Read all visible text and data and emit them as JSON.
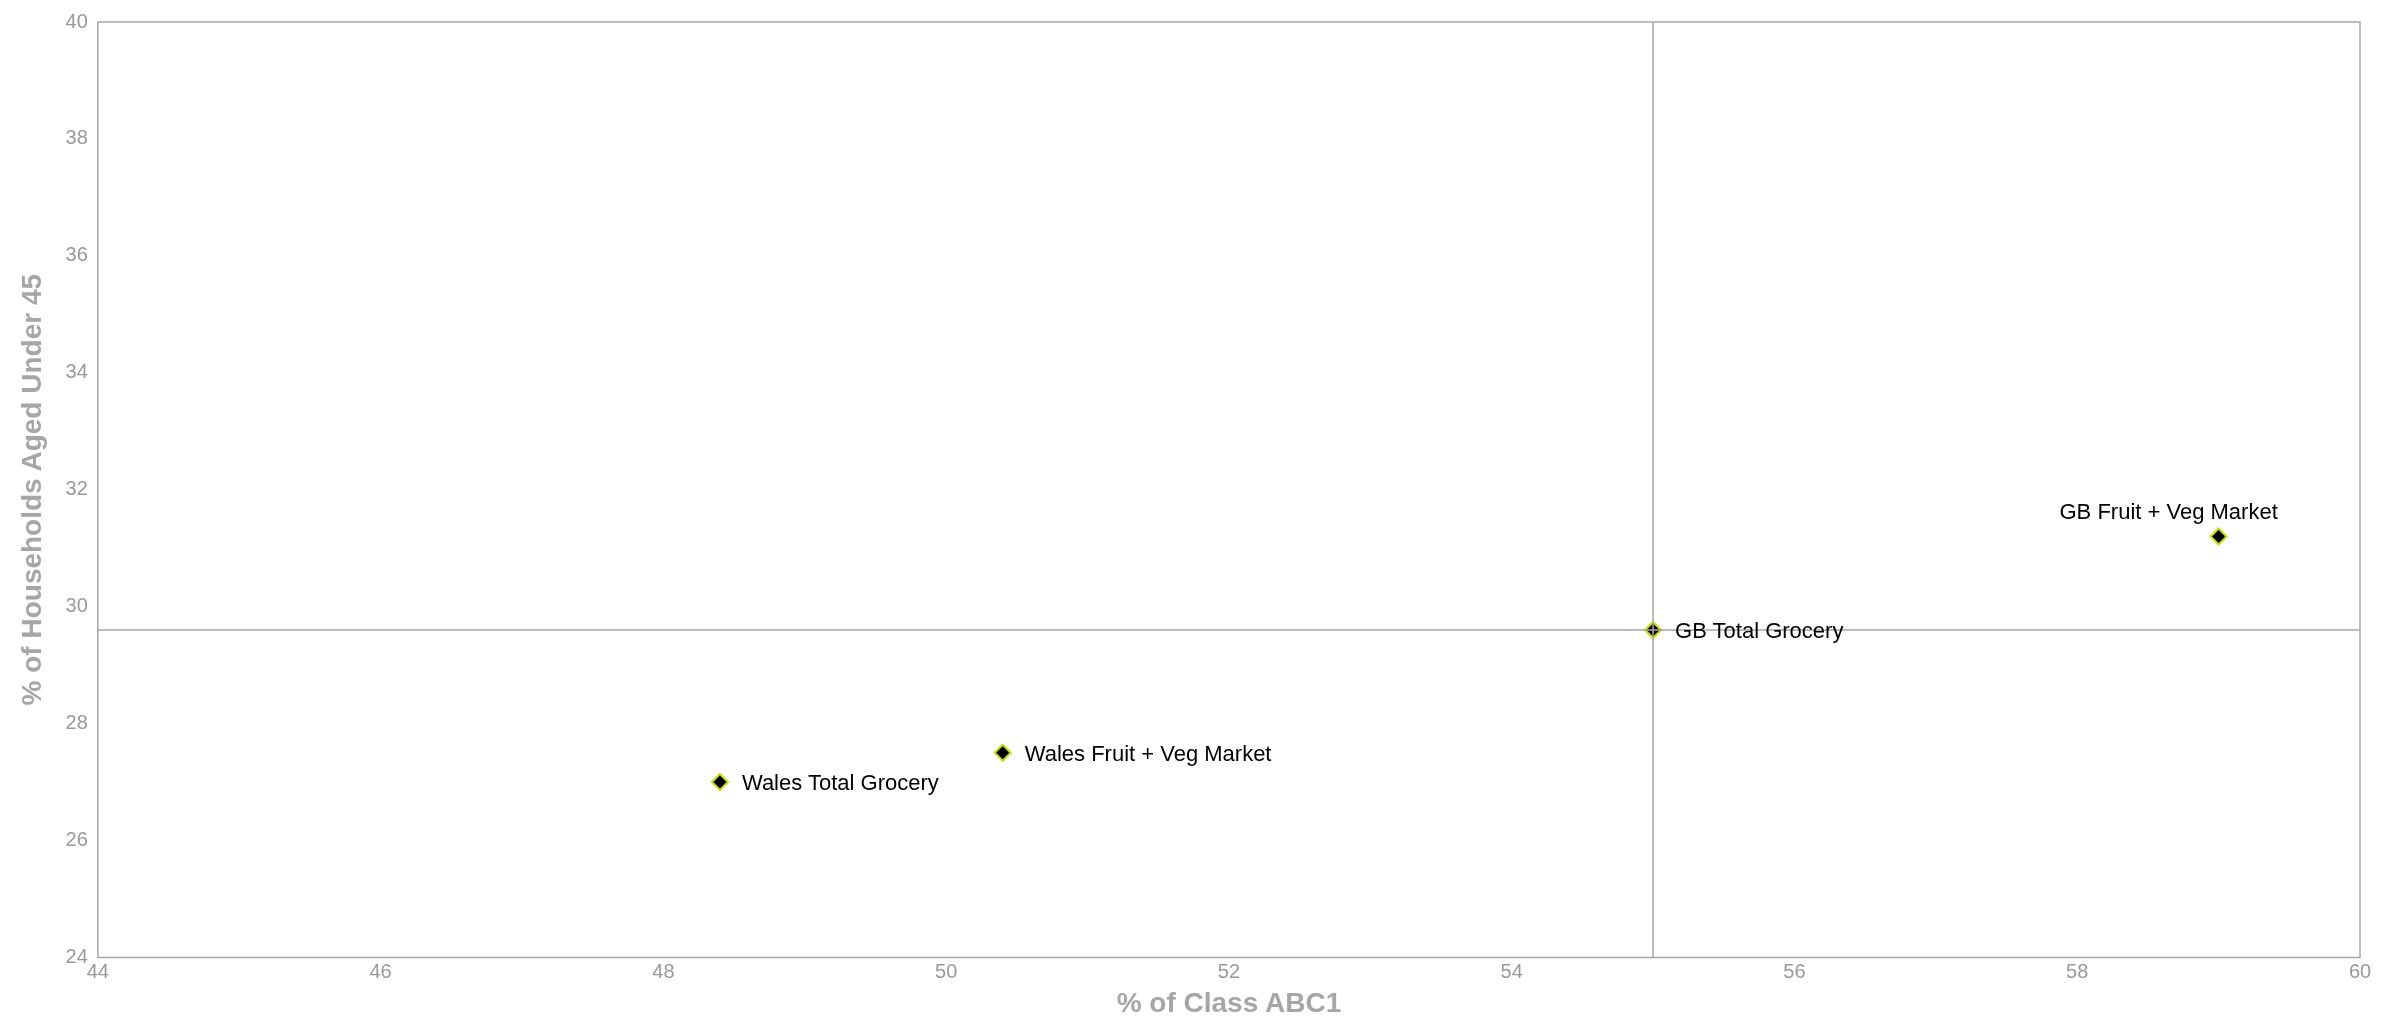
{
  "chart_data": {
    "type": "scatter",
    "xlabel": "% of Class ABC1",
    "ylabel": "% of Households Aged Under 45",
    "series": [
      {
        "color": "#000000",
        "x": [
          48.4,
          50.4,
          55.0,
          59.0
        ],
        "values": [
          27.0,
          27.5,
          29.6,
          31.2
        ]
      }
    ],
    "xlim": [
      44,
      60
    ],
    "xticks": [
      44,
      46,
      48,
      50,
      52,
      54,
      56,
      58,
      60
    ],
    "ylim": [
      24,
      40
    ],
    "yticks": [
      24,
      26,
      28,
      30,
      32,
      34,
      36,
      38,
      40
    ],
    "grid": false,
    "legend": false,
    "marker": "diamond",
    "ref_lines": [
      {
        "axis": "x",
        "value": 55,
        "color": "#a6a6a6"
      },
      {
        "axis": "y",
        "value": 29.6,
        "color": "#a6a6a6"
      }
    ],
    "annotations": [
      {
        "text": "Wales Total Grocery",
        "x": 48.4,
        "y": 27.0
      },
      {
        "text": "Wales Fruit + Veg Market",
        "x": 50.4,
        "y": 27.5
      },
      {
        "text": "GB Total Grocery",
        "x": 55.0,
        "y": 29.6
      },
      {
        "text": "GB Fruit + Veg Market",
        "x": 59.0,
        "y": 31.2
      }
    ]
  }
}
